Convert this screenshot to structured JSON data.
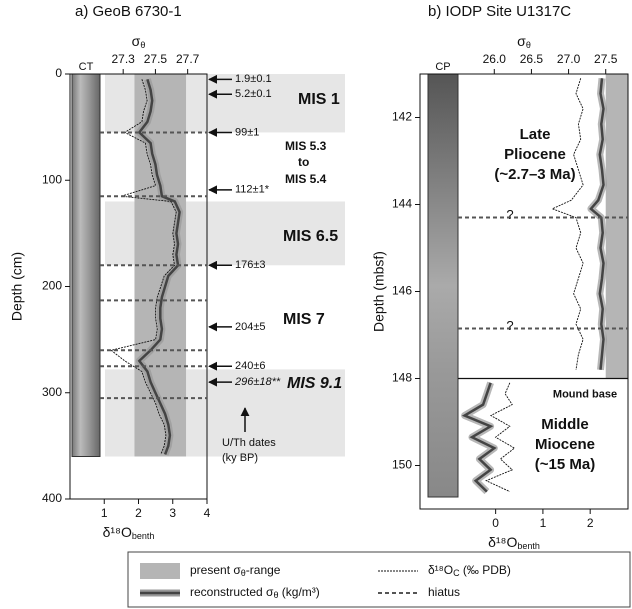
{
  "chart_data": [
    {
      "type": "profile",
      "title": "a) GeoB 6730-1",
      "core_label": "CT",
      "y_label": "Depth (cm)",
      "ylim": [
        0,
        400
      ],
      "yticks": [
        0,
        100,
        200,
        300,
        400
      ],
      "x_label": "δ¹⁸O",
      "x_label_sub": "benth",
      "xlim": [
        0,
        4
      ],
      "xticks": [
        1,
        2,
        3,
        4
      ],
      "x2_label": "σ",
      "x2_label_sub": "θ",
      "x2lim": [
        26.97,
        27.82
      ],
      "x2ticks": [
        27.3,
        27.5,
        27.7
      ],
      "present_range": {
        "sigma": [
          27.37,
          27.69
        ],
        "depth": [
          0,
          360
        ]
      },
      "stage_bands": [
        [
          0,
          55
        ],
        [
          120,
          180
        ],
        [
          278,
          360
        ]
      ],
      "stage_labels": [
        "MIS 1",
        "MIS 5.3",
        "to",
        "MIS 5.4",
        "MIS 6.5",
        "MIS 7",
        "MIS 9.1"
      ],
      "hiatus": [
        55,
        115,
        180,
        213,
        260,
        275,
        305
      ],
      "dates": {
        "labels": [
          "1.9±0.1",
          "5.2±0.1",
          "99±1",
          "112±1*",
          "176±3",
          "204±5",
          "240±6",
          "296±18**"
        ],
        "depths": [
          5,
          19,
          55,
          109,
          180,
          238,
          275,
          290
        ]
      },
      "dates_note": [
        "U/Th dates",
        "(ky BP)"
      ],
      "series": [
        {
          "axis": "x2",
          "color": "#444444",
          "depth": [
            5,
            15,
            25,
            35,
            45,
            55,
            65,
            75,
            85,
            95,
            105,
            115,
            120,
            130,
            140,
            150,
            160,
            170,
            180,
            190,
            200,
            210,
            220,
            230,
            240,
            250,
            260,
            270,
            280,
            290,
            300,
            310,
            320,
            330,
            340,
            350,
            358
          ],
          "values": [
            27.45,
            27.47,
            27.48,
            27.47,
            27.45,
            27.4,
            27.47,
            27.48,
            27.5,
            27.51,
            27.53,
            27.54,
            27.62,
            27.65,
            27.64,
            27.63,
            27.64,
            27.63,
            27.64,
            27.58,
            27.56,
            27.54,
            27.53,
            27.53,
            27.54,
            27.53,
            27.47,
            27.4,
            27.45,
            27.47,
            27.5,
            27.53,
            27.56,
            27.58,
            27.59,
            27.58,
            27.56
          ]
        },
        {
          "color": "#111111",
          "depth": [
            5,
            15,
            25,
            35,
            45,
            55,
            65,
            75,
            85,
            95,
            105,
            115,
            120,
            130,
            140,
            150,
            160,
            170,
            180,
            190,
            200,
            210,
            220,
            230,
            240,
            250,
            260,
            270,
            280,
            290,
            300,
            310,
            320,
            330,
            340,
            350,
            358
          ],
          "values": [
            2.1,
            2.2,
            2.25,
            2.15,
            2.1,
            1.6,
            2.2,
            2.25,
            2.35,
            2.4,
            2.5,
            1.5,
            2.95,
            3.1,
            3.05,
            3.0,
            3.05,
            3.0,
            3.05,
            2.75,
            2.65,
            2.55,
            2.5,
            2.5,
            2.55,
            2.5,
            1.2,
            1.6,
            2.1,
            2.2,
            2.35,
            2.5,
            2.6,
            2.75,
            2.8,
            2.75,
            2.65
          ]
        }
      ]
    },
    {
      "type": "profile",
      "title": "b) IODP Site U1317C",
      "core_label": "CP",
      "y_label": "Depth (mbsf)",
      "ylim": [
        141,
        151
      ],
      "yticks": [
        142,
        144,
        146,
        148,
        150
      ],
      "x_label": "δ¹⁸O",
      "x_label_sub": "benth",
      "xlim": [
        -1.6,
        2.8
      ],
      "xticks": [
        0,
        1,
        2
      ],
      "x2_label": "σ",
      "x2_label_sub": "θ",
      "x2lim": [
        25.0,
        27.8
      ],
      "x2ticks": [
        {
          "value": 26,
          "label": "26.0"
        },
        26.5,
        {
          "value": 27,
          "label": "27.0"
        },
        27.5
      ],
      "present_range": {
        "sigma": [
          27.5,
          27.8
        ],
        "depth": [
          141,
          148
        ]
      },
      "hiatus": [
        144.3,
        146.85
      ],
      "hiatus_label": "?",
      "mound_base": 148,
      "mound_base_label": "Mound base",
      "unit_labels": [
        "Late",
        "Pliocene",
        "(~2.7–3 Ma)",
        "Middle",
        "Miocene",
        "(~15 Ma)"
      ],
      "series": [
        {
          "axis": "x2",
          "color": "#444444",
          "depth": [
            141.1,
            141.45,
            141.8,
            142.15,
            142.5,
            142.85,
            143.2,
            143.55,
            143.9,
            144.1,
            144.3,
            144.65,
            145.0,
            145.35,
            145.7,
            146.05,
            146.4,
            146.75,
            147.1,
            147.45,
            147.8,
            null,
            148.1,
            148.35,
            148.6,
            148.85,
            149.1,
            149.35,
            149.6,
            149.85,
            150.1,
            150.35,
            150.6
          ],
          "values": [
            27.45,
            27.43,
            27.47,
            27.44,
            27.46,
            27.42,
            27.45,
            27.47,
            27.4,
            27.3,
            27.44,
            27.46,
            27.43,
            27.47,
            27.45,
            27.42,
            27.46,
            27.44,
            27.47,
            27.45,
            27.43,
            null,
            25.95,
            25.9,
            25.85,
            25.6,
            25.95,
            25.7,
            26.0,
            25.8,
            25.95,
            25.75,
            25.9
          ]
        },
        {
          "color": "#111111",
          "depth": [
            141.1,
            141.45,
            141.8,
            142.15,
            142.5,
            142.85,
            143.2,
            143.55,
            143.9,
            144.1,
            144.3,
            144.65,
            145.0,
            145.35,
            145.7,
            146.05,
            146.4,
            146.75,
            147.1,
            147.45,
            147.8,
            null,
            148.1,
            148.35,
            148.6,
            148.85,
            149.1,
            149.35,
            149.6,
            149.85,
            150.1,
            150.35,
            150.6
          ],
          "values": [
            1.8,
            1.7,
            1.85,
            1.75,
            1.8,
            1.65,
            1.75,
            1.85,
            1.6,
            1.2,
            1.7,
            1.8,
            1.7,
            1.85,
            1.75,
            1.65,
            1.8,
            1.7,
            1.85,
            1.75,
            1.7,
            null,
            0.3,
            0.2,
            0.35,
            -0.1,
            0.3,
            0,
            0.4,
            0.1,
            0.35,
            -0.2,
            0.3
          ]
        }
      ]
    }
  ],
  "legend": {
    "range": [
      "present σ",
      "θ",
      "-range"
    ],
    "reconstructed": [
      "reconstructed σ",
      "θ",
      " (kg/m³)"
    ],
    "d18o": [
      "δ¹⁸O",
      "C",
      " (‰ PDB)"
    ],
    "hiatus": "hiatus"
  }
}
